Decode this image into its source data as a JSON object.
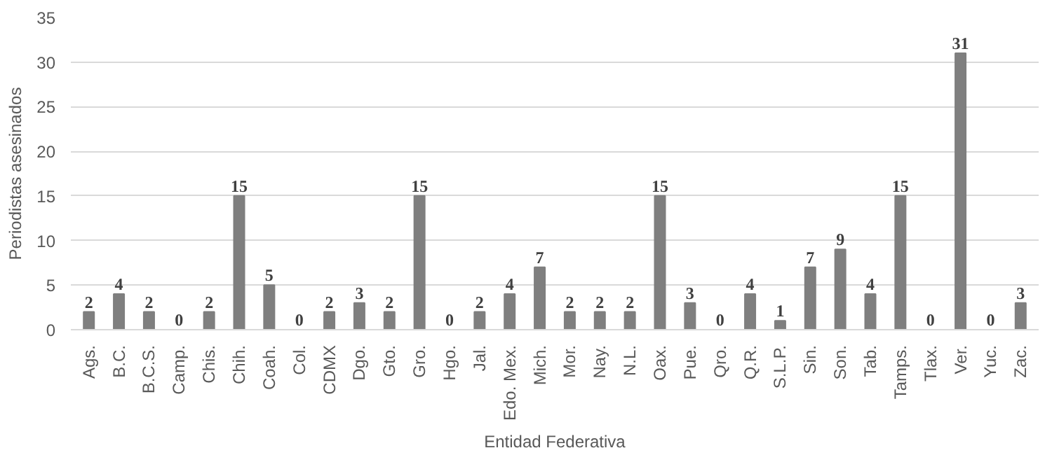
{
  "chart_data": {
    "type": "bar",
    "xlabel": "Entidad Federativa",
    "ylabel": "Periodistas asesinados",
    "categories": [
      "Ags.",
      "B.C.",
      "B.C.S.",
      "Camp.",
      "Chis.",
      "Chih.",
      "Coah.",
      "Col.",
      "CDMX",
      "Dgo.",
      "Gto.",
      "Gro.",
      "Hgo.",
      "Jal.",
      "Edo. Mex.",
      "Mich.",
      "Mor.",
      "Nay.",
      "N.L.",
      "Oax.",
      "Pue.",
      "Qro.",
      "Q.R.",
      "S.L.P.",
      "Sin.",
      "Son.",
      "Tab.",
      "Tamps.",
      "Tlax.",
      "Ver.",
      "Yuc.",
      "Zac."
    ],
    "values": [
      2,
      4,
      2,
      0,
      2,
      15,
      5,
      0,
      2,
      3,
      2,
      15,
      0,
      2,
      4,
      7,
      2,
      2,
      2,
      15,
      3,
      0,
      4,
      1,
      7,
      9,
      4,
      15,
      0,
      31,
      0,
      3
    ],
    "color": "#7f7f7f",
    "ylim": [
      0,
      35
    ],
    "yticks": [
      0,
      5,
      10,
      15,
      20,
      25,
      30,
      35
    ],
    "grid": "y",
    "data_labels": true
  }
}
